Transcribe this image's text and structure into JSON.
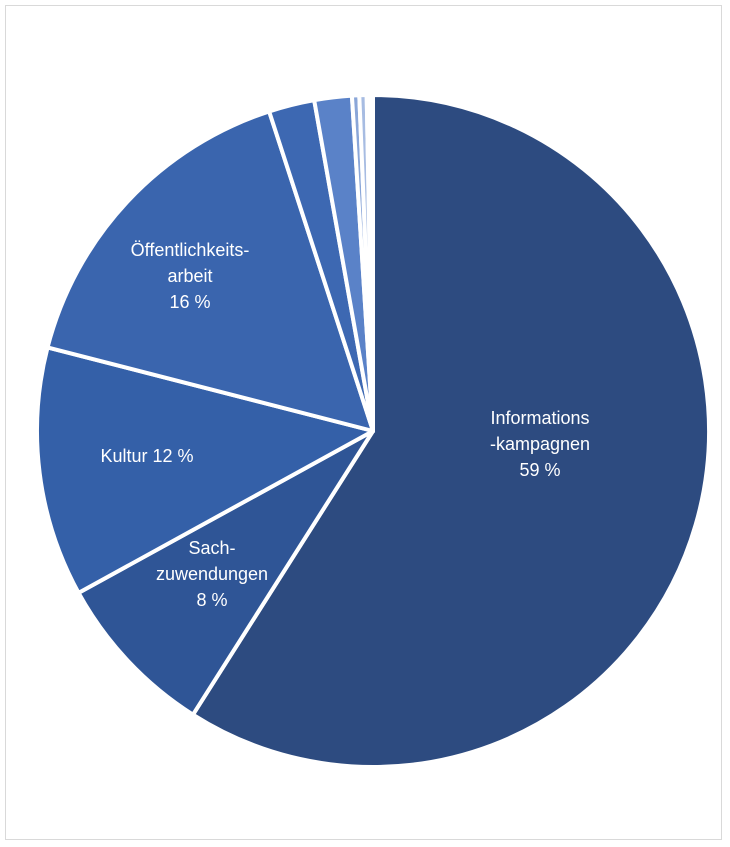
{
  "chart_data": {
    "type": "pie",
    "title": "",
    "legend": "none",
    "slices": [
      {
        "value": 59.0,
        "color": "#2d4b80",
        "label_lines": [
          "Informations",
          "-kampagnen",
          "59 %"
        ]
      },
      {
        "value": 8.0,
        "color": "#2f5596",
        "label_lines": [
          "Sach-",
          "zuwendungen",
          "8 %"
        ]
      },
      {
        "value": 12.0,
        "color": "#3460a8",
        "label_lines": [
          "Kultur 12 %"
        ]
      },
      {
        "value": 16.0,
        "color": "#3a65ae",
        "label_lines": [
          "Öffentlichkeits-",
          "arbeit",
          "16 %"
        ]
      },
      {
        "value": 2.2,
        "color": "#3d68b2",
        "label_lines": []
      },
      {
        "value": 1.8,
        "color": "#5a82c8",
        "label_lines": []
      },
      {
        "value": 0.35,
        "color": "#8aa6d8",
        "label_lines": []
      },
      {
        "value": 0.35,
        "color": "#a7bce2",
        "label_lines": []
      },
      {
        "value": 0.15,
        "color": "#c4d2ec",
        "label_lines": []
      },
      {
        "value": 0.15,
        "color": "#dbe4f4",
        "label_lines": []
      }
    ]
  }
}
